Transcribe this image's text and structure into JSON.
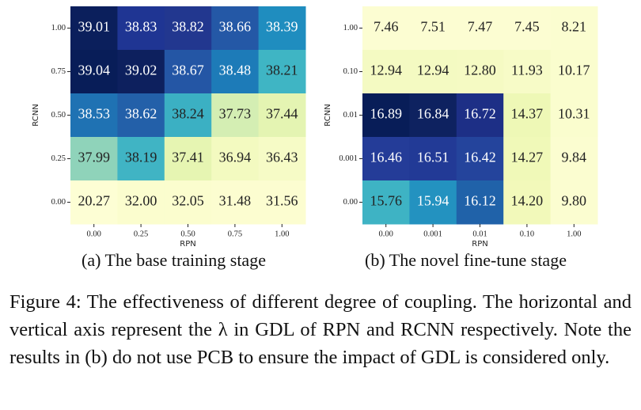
{
  "chart_data": [
    {
      "type": "heatmap",
      "xlabel": "RPN",
      "ylabel": "RCNN",
      "subcaption": "(a) The base training stage",
      "x_categories": [
        "0.00",
        "0.25",
        "0.50",
        "0.75",
        "1.00"
      ],
      "y_categories": [
        "1.00",
        "0.75",
        "0.50",
        "0.25",
        "0.00"
      ],
      "values": [
        [
          39.01,
          38.83,
          38.82,
          38.66,
          38.39
        ],
        [
          39.04,
          39.02,
          38.67,
          38.48,
          38.21
        ],
        [
          38.53,
          38.62,
          38.24,
          37.73,
          37.44
        ],
        [
          37.99,
          38.19,
          37.41,
          36.94,
          36.43
        ],
        [
          20.27,
          32.0,
          32.05,
          31.48,
          31.56
        ]
      ],
      "value_labels": [
        [
          "39.01",
          "38.83",
          "38.82",
          "38.66",
          "38.39"
        ],
        [
          "39.04",
          "39.02",
          "38.67",
          "38.48",
          "38.21"
        ],
        [
          "38.53",
          "38.62",
          "38.24",
          "37.73",
          "37.44"
        ],
        [
          "37.99",
          "38.19",
          "37.41",
          "36.94",
          "36.43"
        ],
        [
          "20.27",
          "32.00",
          "32.05",
          "31.48",
          "31.56"
        ]
      ],
      "colors": [
        [
          "#0b1f5c",
          "#1f3593",
          "#22378f",
          "#2458a6",
          "#1f8dbf"
        ],
        [
          "#081d58",
          "#0d205e",
          "#2456a5",
          "#1d7bb8",
          "#3fb5c4"
        ],
        [
          "#1f72b3",
          "#2360a9",
          "#3bb0c3",
          "#d4eeb3",
          "#e4f4b2"
        ],
        [
          "#8fd3ba",
          "#40b4c4",
          "#e6f5b2",
          "#f3fac0",
          "#f6fbc6"
        ],
        [
          "#fdfed4",
          "#fbfdce",
          "#fbfdce",
          "#fcfdd0",
          "#fcfdd0"
        ]
      ]
    },
    {
      "type": "heatmap",
      "xlabel": "RPN",
      "ylabel": "RCNN",
      "subcaption": "(b) The novel fine-tune stage",
      "x_categories": [
        "0.00",
        "0.001",
        "0.01",
        "0.10",
        "1.00"
      ],
      "y_categories": [
        "1.00",
        "0.10",
        "0.01",
        "0.001",
        "0.00"
      ],
      "values": [
        [
          7.46,
          7.51,
          7.47,
          7.45,
          8.21
        ],
        [
          12.94,
          12.94,
          12.8,
          11.93,
          10.17
        ],
        [
          16.89,
          16.84,
          16.72,
          14.37,
          10.31
        ],
        [
          16.46,
          16.51,
          16.42,
          14.27,
          9.84
        ],
        [
          15.76,
          15.94,
          16.12,
          14.2,
          9.8
        ]
      ],
      "value_labels": [
        [
          "7.46",
          "7.51",
          "7.47",
          "7.45",
          "8.21"
        ],
        [
          "12.94",
          "12.94",
          "12.80",
          "11.93",
          "10.17"
        ],
        [
          "16.89",
          "16.84",
          "16.72",
          "14.37",
          "10.31"
        ],
        [
          "16.46",
          "16.51",
          "16.42",
          "14.27",
          "9.84"
        ],
        [
          "15.76",
          "15.94",
          "16.12",
          "14.20",
          "9.80"
        ]
      ],
      "colors": [
        [
          "#fcfdd2",
          "#fcfdd2",
          "#fcfdd2",
          "#fcfdd2",
          "#fbfdd0"
        ],
        [
          "#f4fac2",
          "#f4fac2",
          "#f5fac3",
          "#f7fbc7",
          "#fafdce"
        ],
        [
          "#081d58",
          "#0e2260",
          "#1d2f86",
          "#eef8b6",
          "#fafdce"
        ],
        [
          "#243c98",
          "#223a96",
          "#24449c",
          "#f0f9b8",
          "#fbfdd0"
        ],
        [
          "#3eb3c4",
          "#2392c0",
          "#2062a9",
          "#f2f9ba",
          "#fbfdd0"
        ]
      ]
    }
  ],
  "caption": "Figure 4: The effectiveness of different degree of coupling. The horizontal and vertical axis represent the λ in GDL of RPN and RCNN respectively. Note the results in (b) do not use PCB to ensure the impact of GDL is considered only."
}
